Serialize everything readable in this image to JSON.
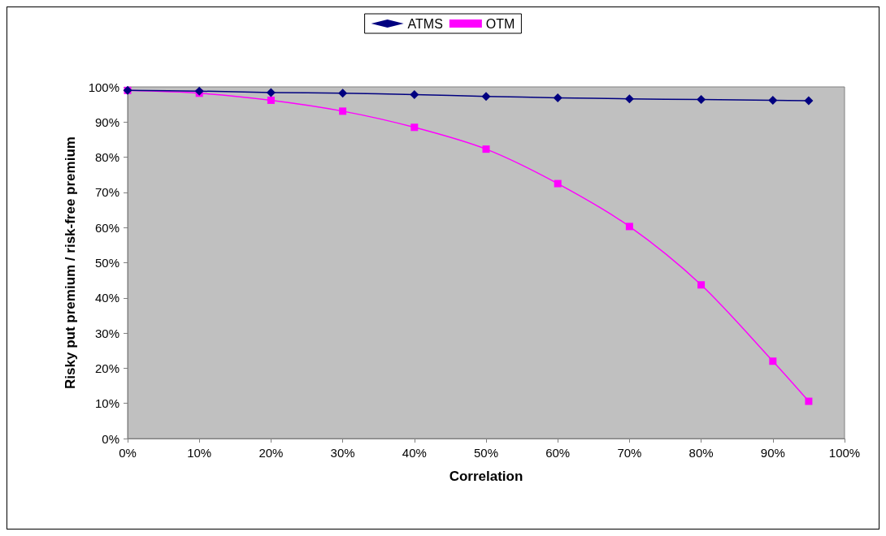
{
  "chart_data": {
    "type": "line",
    "xlabel": "Correlation",
    "ylabel": "Risky put premium / risk-free premium",
    "x": [
      0,
      10,
      20,
      30,
      40,
      50,
      60,
      70,
      80,
      90,
      95
    ],
    "series": [
      {
        "name": "ATMS",
        "color": "#000080",
        "marker": "diamond",
        "values": [
          99,
          98.8,
          98.4,
          98.2,
          97.8,
          97.3,
          96.9,
          96.6,
          96.4,
          96.2,
          96.1
        ]
      },
      {
        "name": "OTM",
        "color": "#ff00ff",
        "marker": "square",
        "values": [
          99,
          98.2,
          96.2,
          93.1,
          88.5,
          82.3,
          72.5,
          60.3,
          43.7,
          22,
          10.6
        ]
      }
    ],
    "xlim": [
      0,
      100
    ],
    "xticks": [
      {
        "value": 0,
        "label": "0%"
      },
      {
        "value": 10,
        "label": "10%"
      },
      {
        "value": 20,
        "label": "20%"
      },
      {
        "value": 30,
        "label": "30%"
      },
      {
        "value": 40,
        "label": "40%"
      },
      {
        "value": 50,
        "label": "50%"
      },
      {
        "value": 60,
        "label": "60%"
      },
      {
        "value": 70,
        "label": "70%"
      },
      {
        "value": 80,
        "label": "80%"
      },
      {
        "value": 90,
        "label": "90%"
      },
      {
        "value": 100,
        "label": "100%"
      }
    ],
    "ylim": [
      0,
      100
    ],
    "yticks": [
      {
        "value": 0,
        "label": "0%"
      },
      {
        "value": 10,
        "label": "10%"
      },
      {
        "value": 20,
        "label": "20%"
      },
      {
        "value": 30,
        "label": "30%"
      },
      {
        "value": 40,
        "label": "40%"
      },
      {
        "value": 50,
        "label": "50%"
      },
      {
        "value": 60,
        "label": "60%"
      },
      {
        "value": 70,
        "label": "70%"
      },
      {
        "value": 80,
        "label": "80%"
      },
      {
        "value": 90,
        "label": "90%"
      },
      {
        "value": 100,
        "label": "100%"
      }
    ],
    "grid": false,
    "legend": "top",
    "line_style": "solid"
  }
}
